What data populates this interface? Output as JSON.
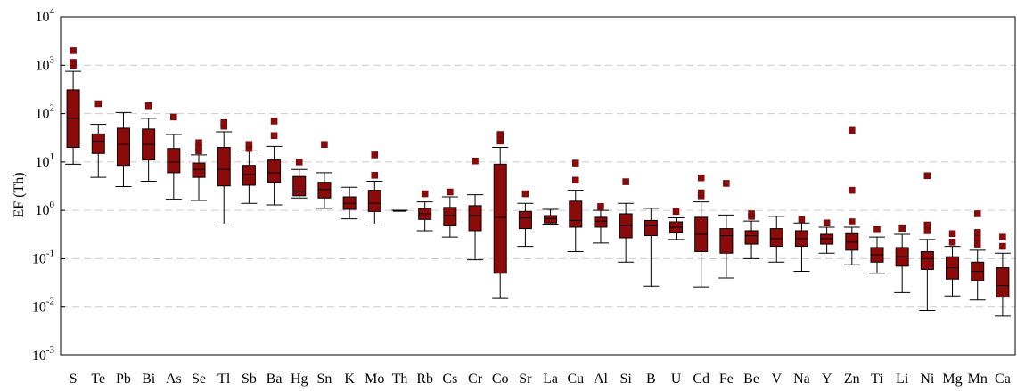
{
  "chart_data": {
    "type": "box",
    "title": "",
    "xlabel": "",
    "ylabel": "EF (Th)",
    "yscale": "log",
    "ylim": [
      0.001,
      10000
    ],
    "yticks": [
      {
        "value": 0.001,
        "base": "10",
        "exp": "-3"
      },
      {
        "value": 0.01,
        "base": "10",
        "exp": "-2"
      },
      {
        "value": 0.1,
        "base": "10",
        "exp": "-1"
      },
      {
        "value": 1,
        "base": "10",
        "exp": "0"
      },
      {
        "value": 10,
        "base": "10",
        "exp": "1"
      },
      {
        "value": 100,
        "base": "10",
        "exp": "2"
      },
      {
        "value": 1000,
        "base": "10",
        "exp": "3"
      },
      {
        "value": 10000,
        "base": "10",
        "exp": "4"
      }
    ],
    "grid": "horizontal dashed",
    "box_color": "#8b0b0b",
    "grid_color": "#cccccc",
    "categories": [
      "S",
      "Te",
      "Pb",
      "Bi",
      "As",
      "Se",
      "Tl",
      "Sb",
      "Ba",
      "Hg",
      "Sn",
      "K",
      "Mo",
      "Th",
      "Rb",
      "Cs",
      "Cr",
      "Co",
      "Sr",
      "La",
      "Cu",
      "Al",
      "Si",
      "B",
      "U",
      "Cd",
      "Fe",
      "Be",
      "V",
      "Na",
      "Y",
      "Zn",
      "Ti",
      "Li",
      "Ni",
      "Mg",
      "Mn",
      "Ca"
    ],
    "boxes": [
      {
        "name": "S",
        "whisker_low": 9,
        "q1": 20,
        "median": 80,
        "q3": 310,
        "whisker_high": 750,
        "outliers": [
          1000,
          1150,
          2000
        ]
      },
      {
        "name": "Te",
        "whisker_low": 4.8,
        "q1": 15,
        "median": 27,
        "q3": 38,
        "whisker_high": 60,
        "outliers": [
          160
        ]
      },
      {
        "name": "Pb",
        "whisker_low": 3.1,
        "q1": 8.5,
        "median": 23,
        "q3": 50,
        "whisker_high": 105,
        "outliers": []
      },
      {
        "name": "Bi",
        "whisker_low": 4,
        "q1": 11,
        "median": 23,
        "q3": 48,
        "whisker_high": 80,
        "outliers": [
          145
        ]
      },
      {
        "name": "As",
        "whisker_low": 1.7,
        "q1": 6,
        "median": 10,
        "q3": 19,
        "whisker_high": 37,
        "outliers": [
          85
        ]
      },
      {
        "name": "Se",
        "whisker_low": 1.6,
        "q1": 4.8,
        "median": 7,
        "q3": 9.5,
        "whisker_high": 14,
        "outliers": [
          17,
          20,
          25
        ]
      },
      {
        "name": "Tl",
        "whisker_low": 0.52,
        "q1": 3.2,
        "median": 7,
        "q3": 20,
        "whisker_high": 42,
        "outliers": [
          55,
          65
        ]
      },
      {
        "name": "Sb",
        "whisker_low": 1.4,
        "q1": 3.3,
        "median": 5.5,
        "q3": 8.5,
        "whisker_high": 17,
        "outliers": [
          19,
          23
        ]
      },
      {
        "name": "Ba",
        "whisker_low": 1.3,
        "q1": 3.8,
        "median": 6,
        "q3": 11,
        "whisker_high": 21,
        "outliers": [
          35,
          70
        ]
      },
      {
        "name": "Hg",
        "whisker_low": 1.8,
        "q1": 2,
        "median": 2.5,
        "q3": 5,
        "whisker_high": 7,
        "outliers": [
          10
        ]
      },
      {
        "name": "Sn",
        "whisker_low": 1.1,
        "q1": 1.8,
        "median": 2.7,
        "q3": 3.8,
        "whisker_high": 6,
        "outliers": [
          23
        ]
      },
      {
        "name": "K",
        "whisker_low": 0.67,
        "q1": 1.05,
        "median": 1.4,
        "q3": 1.9,
        "whisker_high": 3,
        "outliers": []
      },
      {
        "name": "Mo",
        "whisker_low": 0.52,
        "q1": 0.95,
        "median": 1.4,
        "q3": 2.6,
        "whisker_high": 4,
        "outliers": [
          5.3,
          14
        ]
      },
      {
        "name": "Th",
        "whisker_low": 1,
        "q1": 1,
        "median": 1,
        "q3": 1,
        "whisker_high": 1,
        "outliers": []
      },
      {
        "name": "Rb",
        "whisker_low": 0.38,
        "q1": 0.65,
        "median": 0.85,
        "q3": 1.1,
        "whisker_high": 1.5,
        "outliers": [
          2.2
        ]
      },
      {
        "name": "Cs",
        "whisker_low": 0.28,
        "q1": 0.48,
        "median": 0.78,
        "q3": 1.15,
        "whisker_high": 1.9,
        "outliers": [
          2.4
        ]
      },
      {
        "name": "Cr",
        "whisker_low": 0.095,
        "q1": 0.38,
        "median": 0.78,
        "q3": 1.25,
        "whisker_high": 2.1,
        "outliers": [
          10.5
        ]
      },
      {
        "name": "Co",
        "whisker_low": 0.015,
        "q1": 0.05,
        "median": 0.72,
        "q3": 9,
        "whisker_high": 20,
        "outliers": [
          27,
          32,
          37
        ]
      },
      {
        "name": "Sr",
        "whisker_low": 0.18,
        "q1": 0.42,
        "median": 0.7,
        "q3": 0.95,
        "whisker_high": 1.4,
        "outliers": [
          2.2
        ]
      },
      {
        "name": "La",
        "whisker_low": 0.5,
        "q1": 0.55,
        "median": 0.68,
        "q3": 0.78,
        "whisker_high": 1.05,
        "outliers": []
      },
      {
        "name": "Cu",
        "whisker_low": 0.14,
        "q1": 0.45,
        "median": 0.62,
        "q3": 1.55,
        "whisker_high": 2.6,
        "outliers": [
          4.2,
          9.5
        ]
      },
      {
        "name": "Al",
        "whisker_low": 0.21,
        "q1": 0.45,
        "median": 0.6,
        "q3": 0.72,
        "whisker_high": 1.0,
        "outliers": [
          1.2
        ]
      },
      {
        "name": "Si",
        "whisker_low": 0.085,
        "q1": 0.27,
        "median": 0.48,
        "q3": 0.85,
        "whisker_high": 1.4,
        "outliers": [
          3.9
        ]
      },
      {
        "name": "B",
        "whisker_low": 0.027,
        "q1": 0.3,
        "median": 0.48,
        "q3": 0.62,
        "whisker_high": 1.1,
        "outliers": []
      },
      {
        "name": "U",
        "whisker_low": 0.25,
        "q1": 0.34,
        "median": 0.45,
        "q3": 0.58,
        "whisker_high": 0.7,
        "outliers": [
          0.95
        ]
      },
      {
        "name": "Cd",
        "whisker_low": 0.026,
        "q1": 0.14,
        "median": 0.32,
        "q3": 0.72,
        "whisker_high": 1.5,
        "outliers": [
          2,
          2.3,
          4.7
        ]
      },
      {
        "name": "Fe",
        "whisker_low": 0.04,
        "q1": 0.13,
        "median": 0.3,
        "q3": 0.42,
        "whisker_high": 0.8,
        "outliers": [
          3.6
        ]
      },
      {
        "name": "Be",
        "whisker_low": 0.1,
        "q1": 0.2,
        "median": 0.3,
        "q3": 0.38,
        "whisker_high": 0.6,
        "outliers": [
          0.75,
          0.85
        ]
      },
      {
        "name": "V",
        "whisker_low": 0.085,
        "q1": 0.18,
        "median": 0.26,
        "q3": 0.42,
        "whisker_high": 0.75,
        "outliers": []
      },
      {
        "name": "Na",
        "whisker_low": 0.055,
        "q1": 0.18,
        "median": 0.26,
        "q3": 0.38,
        "whisker_high": 0.55,
        "outliers": [
          0.65
        ]
      },
      {
        "name": "Y",
        "whisker_low": 0.13,
        "q1": 0.2,
        "median": 0.26,
        "q3": 0.32,
        "whisker_high": 0.45,
        "outliers": [
          0.55
        ]
      },
      {
        "name": "Zn",
        "whisker_low": 0.075,
        "q1": 0.15,
        "median": 0.22,
        "q3": 0.33,
        "whisker_high": 0.45,
        "outliers": [
          0.58,
          2.6,
          45
        ]
      },
      {
        "name": "Ti",
        "whisker_low": 0.05,
        "q1": 0.085,
        "median": 0.12,
        "q3": 0.17,
        "whisker_high": 0.28,
        "outliers": [
          0.4
        ]
      },
      {
        "name": "Li",
        "whisker_low": 0.02,
        "q1": 0.07,
        "median": 0.11,
        "q3": 0.17,
        "whisker_high": 0.32,
        "outliers": [
          0.42
        ]
      },
      {
        "name": "Ni",
        "whisker_low": 0.0085,
        "q1": 0.06,
        "median": 0.1,
        "q3": 0.14,
        "whisker_high": 0.25,
        "outliers": [
          0.38,
          0.5,
          5.2
        ]
      },
      {
        "name": "Mg",
        "whisker_low": 0.017,
        "q1": 0.038,
        "median": 0.065,
        "q3": 0.11,
        "whisker_high": 0.18,
        "outliers": [
          0.22,
          0.33
        ]
      },
      {
        "name": "Mn",
        "whisker_low": 0.014,
        "q1": 0.035,
        "median": 0.055,
        "q3": 0.085,
        "whisker_high": 0.15,
        "outliers": [
          0.2,
          0.27,
          0.35,
          0.85
        ]
      },
      {
        "name": "Ca",
        "whisker_low": 0.0065,
        "q1": 0.016,
        "median": 0.028,
        "q3": 0.065,
        "whisker_high": 0.13,
        "outliers": [
          0.18,
          0.28
        ]
      }
    ]
  }
}
